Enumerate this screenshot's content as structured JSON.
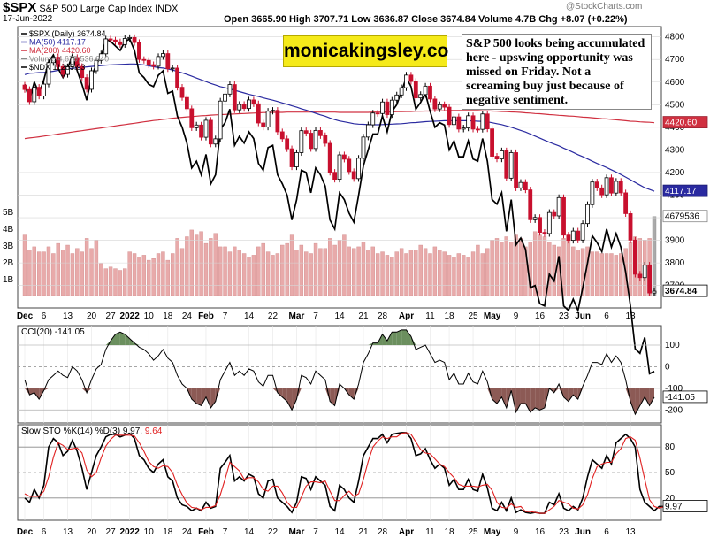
{
  "header": {
    "symbol": "$SPX",
    "name": "S&P 500 Large Cap Index",
    "exchange": "INDX",
    "date": "17-Jun-2022",
    "ohlc": "Open 3665.90  High 3707.71  Low 3636.87  Close 3674.84  Volume 4.7B  Chg +8.07 (+0.22%)",
    "watermark": "@StockCharts.com"
  },
  "brand_label": "monicakingsley.co",
  "annotation": "S&P 500 looks being accumulated here - upswing opportunity was missed on Friday. Not a screaming buy just because of negative sentiment.",
  "colors": {
    "up": "#000000",
    "down": "#c8102e",
    "ma50": "#2a2aa0",
    "ma200": "#d03040",
    "ndx": "#000000",
    "volume": "#e8aaaa",
    "cci_pos": "#6b8f5e",
    "cci_neg": "#8c5a55",
    "stoch_k": "#000000",
    "stoch_d": "#e02020",
    "last_price_bg": "#ffffff"
  },
  "chart_data": [
    {
      "type": "candlestick",
      "title": "$SPX (Daily) 3674.84",
      "legend": [
        {
          "label": "$SPX (Daily) 3674.84",
          "color": "#000000"
        },
        {
          "label": "MA(50) 4117.17",
          "color": "#2a2aa0"
        },
        {
          "label": "MA(200) 4420.60",
          "color": "#d03040"
        },
        {
          "label": "Volume 4,679,536,640",
          "color": "#888888"
        },
        {
          "label": "$NDX 11265.93",
          "color": "#000000"
        }
      ],
      "x_tick_labels": [
        "Dec",
        "6",
        "13",
        "20",
        "27",
        "2022",
        "10",
        "18",
        "24",
        "Feb",
        "7",
        "14",
        "22",
        "Mar",
        "7",
        "14",
        "21",
        "28",
        "Apr",
        "11",
        "18",
        "25",
        "May",
        "9",
        "16",
        "23",
        "Jun",
        "6",
        "13"
      ],
      "y_tick_labels": [
        "3700",
        "3800",
        "3900",
        "4000",
        "4100",
        "4200",
        "4300",
        "4400",
        "4500",
        "4600",
        "4700",
        "4800"
      ],
      "ylim": [
        3640,
        4830
      ],
      "volume_tick_labels": [
        "1B",
        "2B",
        "3B",
        "4B",
        "5B"
      ],
      "last_labels": {
        "price": "3674.84",
        "ma50": "4117.17",
        "ma200": "4420.60",
        "volume": "4679536"
      },
      "spx_close": [
        4567,
        4513,
        4577,
        4538,
        4591,
        4686,
        4710,
        4668,
        4634,
        4668,
        4709,
        4669,
        4620,
        4568,
        4650,
        4696,
        4725,
        4791,
        4786,
        4778,
        4766,
        4793,
        4797,
        4775,
        4700,
        4696,
        4677,
        4670,
        4713,
        4726,
        4659,
        4662,
        4577,
        4532,
        4482,
        4398,
        4410,
        4356,
        4431,
        4326,
        4349,
        4516,
        4547,
        4589,
        4477,
        4501,
        4483,
        4521,
        4504,
        4419,
        4401,
        4471,
        4475,
        4380,
        4349,
        4305,
        4225,
        4288,
        4385,
        4374,
        4306,
        4386,
        4363,
        4329,
        4201,
        4170,
        4278,
        4259,
        4204,
        4173,
        4263,
        4357,
        4411,
        4463,
        4461,
        4512,
        4456,
        4520,
        4543,
        4575,
        4631,
        4603,
        4530,
        4545,
        4582,
        4525,
        4481,
        4500,
        4489,
        4412,
        4446,
        4392,
        4397,
        4451,
        4392,
        4391,
        4459,
        4393,
        4272,
        4260,
        4296,
        4175,
        4288,
        4132,
        4156,
        4123,
        3991,
        4001,
        3935,
        3930,
        4023,
        4008,
        4089,
        3923,
        3900,
        3941,
        3901,
        3974,
        4058,
        4158,
        4132,
        4101,
        4177,
        4109,
        4161,
        4110,
        4018,
        3901,
        3750,
        3735,
        3790,
        3667,
        3675
      ],
      "ma50": [
        4633,
        4639,
        4640,
        4642,
        4643,
        4645,
        4648,
        4652,
        4656,
        4658,
        4661,
        4663,
        4665,
        4667,
        4669,
        4671,
        4673,
        4675,
        4676,
        4677,
        4678,
        4679,
        4680,
        4680,
        4678,
        4676,
        4672,
        4668,
        4664,
        4662,
        4658,
        4653,
        4647,
        4641,
        4634,
        4626,
        4618,
        4610,
        4602,
        4594,
        4587,
        4580,
        4575,
        4570,
        4564,
        4558,
        4552,
        4546,
        4541,
        4536,
        4530,
        4525,
        4520,
        4514,
        4508,
        4502,
        4495,
        4489,
        4482,
        4476,
        4469,
        4462,
        4455,
        4449,
        4441,
        4434,
        4428,
        4424,
        4420,
        4416,
        4414,
        4413,
        4412,
        4411,
        4411,
        4412,
        4413,
        4414,
        4415,
        4416,
        4418,
        4420,
        4421,
        4423,
        4425,
        4426,
        4427,
        4428,
        4429,
        4429,
        4429,
        4429,
        4429,
        4429,
        4428,
        4427,
        4426,
        4424,
        4420,
        4416,
        4412,
        4406,
        4400,
        4393,
        4386,
        4379,
        4370,
        4361,
        4352,
        4343,
        4334,
        4326,
        4318,
        4308,
        4299,
        4289,
        4279,
        4270,
        4260,
        4250,
        4240,
        4231,
        4222,
        4212,
        4202,
        4191,
        4180,
        4168,
        4156,
        4144,
        4133,
        4125,
        4117
      ],
      "ma200": [
        4350,
        4353,
        4355,
        4358,
        4361,
        4364,
        4367,
        4370,
        4373,
        4376,
        4379,
        4382,
        4385,
        4388,
        4391,
        4394,
        4397,
        4400,
        4403,
        4406,
        4409,
        4412,
        4415,
        4418,
        4421,
        4424,
        4427,
        4430,
        4432,
        4435,
        4437,
        4440,
        4442,
        4444,
        4446,
        4447,
        4449,
        4451,
        4452,
        4454,
        4455,
        4456,
        4457,
        4458,
        4459,
        4460,
        4461,
        4462,
        4463,
        4464,
        4465,
        4465,
        4466,
        4466,
        4466,
        4467,
        4467,
        4467,
        4467,
        4467,
        4467,
        4467,
        4467,
        4467,
        4467,
        4467,
        4466,
        4466,
        4466,
        4466,
        4466,
        4466,
        4466,
        4467,
        4467,
        4467,
        4468,
        4468,
        4469,
        4469,
        4470,
        4470,
        4471,
        4471,
        4472,
        4472,
        4473,
        4473,
        4473,
        4474,
        4474,
        4474,
        4474,
        4474,
        4474,
        4474,
        4473,
        4473,
        4472,
        4471,
        4470,
        4469,
        4468,
        4467,
        4466,
        4464,
        4463,
        4461,
        4460,
        4458,
        4456,
        4455,
        4453,
        4452,
        4450,
        4449,
        4447,
        4445,
        4444,
        4442,
        4440,
        4438,
        4437,
        4435,
        4433,
        4431,
        4429,
        4427,
        4426,
        4424,
        4423,
        4422,
        4420
      ],
      "ndx_overlay_close": [
        4590,
        4520,
        4600,
        4550,
        4610,
        4690,
        4720,
        4660,
        4620,
        4660,
        4720,
        4650,
        4590,
        4520,
        4620,
        4680,
        4710,
        4790,
        4780,
        4760,
        4740,
        4780,
        4790,
        4740,
        4640,
        4620,
        4590,
        4580,
        4630,
        4650,
        4550,
        4560,
        4450,
        4400,
        4330,
        4220,
        4250,
        4190,
        4280,
        4150,
        4190,
        4390,
        4420,
        4480,
        4320,
        4360,
        4330,
        4380,
        4350,
        4240,
        4210,
        4310,
        4320,
        4190,
        4150,
        4100,
        3990,
        4080,
        4210,
        4200,
        4110,
        4220,
        4190,
        4140,
        3990,
        3950,
        4110,
        4080,
        4020,
        3980,
        4100,
        4230,
        4300,
        4370,
        4370,
        4450,
        4380,
        4470,
        4500,
        4560,
        4620,
        4580,
        4480,
        4510,
        4550,
        4470,
        4400,
        4420,
        4410,
        4300,
        4340,
        4270,
        4270,
        4340,
        4260,
        4250,
        4350,
        4250,
        4080,
        4060,
        4110,
        3940,
        4080,
        3880,
        3910,
        3860,
        3690,
        3700,
        3620,
        3610,
        3750,
        3720,
        3830,
        3610,
        3590,
        3640,
        3590,
        3690,
        3800,
        3920,
        3890,
        3850,
        3950,
        3870,
        3930,
        3870,
        3760,
        3610,
        3420,
        3400,
        3470,
        3310,
        3320
      ],
      "volume_billions": [
        3.6,
        2.7,
        2.9,
        2.6,
        2.6,
        2.9,
        2.5,
        3.1,
        2.7,
        3.0,
        2.5,
        2.8,
        2.6,
        3.4,
        2.8,
        3.3,
        1.9,
        1.6,
        1.7,
        1.6,
        1.5,
        1.6,
        2.6,
        2.5,
        2.3,
        2.4,
        2.1,
        2.2,
        2.5,
        2.6,
        2.1,
        2.5,
        3.4,
        2.8,
        3.5,
        3.9,
        3.6,
        3.8,
        3.1,
        3.4,
        3.7,
        2.9,
        2.9,
        2.6,
        2.9,
        2.7,
        2.5,
        2.3,
        2.4,
        2.9,
        3.1,
        2.6,
        2.4,
        2.5,
        3.0,
        3.1,
        3.6,
        2.7,
        3.0,
        2.6,
        2.5,
        3.1,
        2.8,
        2.8,
        3.4,
        3.0,
        3.3,
        3.6,
        2.9,
        2.8,
        2.9,
        3.2,
        2.7,
        2.9,
        2.5,
        2.6,
        2.4,
        2.3,
        2.6,
        2.8,
        2.5,
        2.7,
        2.7,
        3.0,
        2.8,
        2.5,
        2.9,
        2.7,
        2.6,
        2.4,
        2.3,
        2.5,
        2.4,
        2.3,
        2.6,
        3.0,
        2.5,
        2.8,
        3.3,
        3.4,
        3.2,
        3.5,
        3.2,
        3.6,
        3.4,
        2.9,
        3.2,
        3.8,
        3.6,
        3.5,
        3.2,
        3.0,
        2.9,
        3.4,
        3.6,
        2.9,
        2.7,
        2.8,
        2.9,
        2.6,
        2.6,
        2.5,
        2.5,
        2.5,
        2.4,
        2.5,
        2.8,
        3.2,
        3.5,
        3.4,
        3.3,
        3.4,
        4.7
      ]
    },
    {
      "type": "line",
      "title": "CCI(20) -141.05",
      "y_tick_labels": [
        "-200",
        "-100",
        "0",
        "100"
      ],
      "ylim": [
        -260,
        190
      ],
      "last_label": "-141.05",
      "values": [
        -60,
        -130,
        -120,
        -150,
        -110,
        -60,
        -40,
        -20,
        -40,
        -50,
        0,
        -20,
        -60,
        -120,
        -60,
        -10,
        10,
        80,
        120,
        150,
        160,
        150,
        130,
        110,
        90,
        80,
        60,
        30,
        50,
        80,
        40,
        20,
        -40,
        -80,
        -100,
        -150,
        -170,
        -180,
        -140,
        -190,
        -160,
        -60,
        -20,
        20,
        -40,
        -20,
        -40,
        -10,
        -20,
        -70,
        -90,
        -40,
        -40,
        -120,
        -140,
        -160,
        -200,
        -150,
        -40,
        -50,
        -80,
        -20,
        -40,
        -60,
        -160,
        -180,
        -80,
        -100,
        -130,
        -150,
        -80,
        20,
        60,
        110,
        110,
        150,
        120,
        160,
        160,
        170,
        170,
        140,
        80,
        90,
        100,
        60,
        20,
        30,
        20,
        -60,
        -30,
        -80,
        -80,
        -30,
        -70,
        -80,
        -20,
        -70,
        -150,
        -170,
        -140,
        -190,
        -110,
        -210,
        -170,
        -170,
        -210,
        -190,
        -200,
        -190,
        -100,
        -120,
        -80,
        -140,
        -160,
        -130,
        -150,
        -90,
        -40,
        20,
        20,
        10,
        60,
        20,
        50,
        20,
        -60,
        -160,
        -220,
        -180,
        -140,
        -180,
        -141
      ]
    },
    {
      "type": "line",
      "title": "Slow STO %K(14) %D(3) 9.97, 9.64",
      "series": [
        {
          "name": "%K(14)",
          "color": "#000000",
          "values": [
            20,
            15,
            30,
            20,
            35,
            80,
            90,
            85,
            70,
            75,
            88,
            75,
            55,
            30,
            50,
            70,
            80,
            92,
            95,
            95,
            92,
            94,
            96,
            90,
            70,
            65,
            55,
            50,
            60,
            65,
            45,
            40,
            20,
            12,
            10,
            5,
            8,
            5,
            15,
            8,
            10,
            55,
            62,
            70,
            40,
            45,
            40,
            48,
            45,
            25,
            20,
            40,
            42,
            20,
            15,
            10,
            3,
            15,
            45,
            43,
            30,
            45,
            40,
            35,
            10,
            5,
            35,
            30,
            20,
            15,
            40,
            70,
            80,
            90,
            90,
            95,
            85,
            95,
            96,
            97,
            97,
            90,
            70,
            72,
            78,
            65,
            55,
            60,
            55,
            35,
            42,
            30,
            30,
            42,
            30,
            28,
            48,
            32,
            8,
            5,
            15,
            5,
            20,
            3,
            6,
            3,
            2,
            3,
            2,
            2,
            15,
            12,
            25,
            8,
            5,
            10,
            6,
            20,
            45,
            65,
            60,
            55,
            70,
            60,
            85,
            90,
            95,
            90,
            80,
            30,
            15,
            10,
            5,
            10,
            9.97
          ]
        },
        {
          "name": "%D(3)",
          "color": "#e02020",
          "values": [
            25,
            22,
            22,
            22,
            28,
            45,
            68,
            85,
            82,
            77,
            78,
            79,
            73,
            53,
            45,
            50,
            67,
            81,
            89,
            94,
            94,
            94,
            94,
            93,
            85,
            75,
            63,
            57,
            55,
            58,
            57,
            50,
            35,
            24,
            14,
            9,
            8,
            6,
            9,
            9,
            11,
            24,
            42,
            62,
            57,
            52,
            42,
            44,
            44,
            39,
            30,
            28,
            34,
            34,
            26,
            15,
            9,
            9,
            21,
            34,
            39,
            39,
            38,
            40,
            28,
            17,
            17,
            23,
            28,
            22,
            25,
            42,
            63,
            80,
            87,
            92,
            90,
            92,
            92,
            96,
            97,
            95,
            86,
            77,
            73,
            72,
            66,
            60,
            57,
            50,
            44,
            36,
            34,
            34,
            34,
            33,
            35,
            36,
            29,
            15,
            9,
            8,
            13,
            9,
            10,
            4,
            4,
            3,
            2,
            2,
            6,
            10,
            17,
            15,
            13,
            8,
            7,
            12,
            24,
            43,
            57,
            60,
            62,
            62,
            72,
            78,
            90,
            92,
            88,
            67,
            42,
            18,
            10,
            8,
            9.64
          ]
        }
      ],
      "y_tick_labels": [
        "20",
        "50",
        "80"
      ],
      "ylim": [
        0,
        100
      ],
      "last_label": "9.97"
    }
  ]
}
